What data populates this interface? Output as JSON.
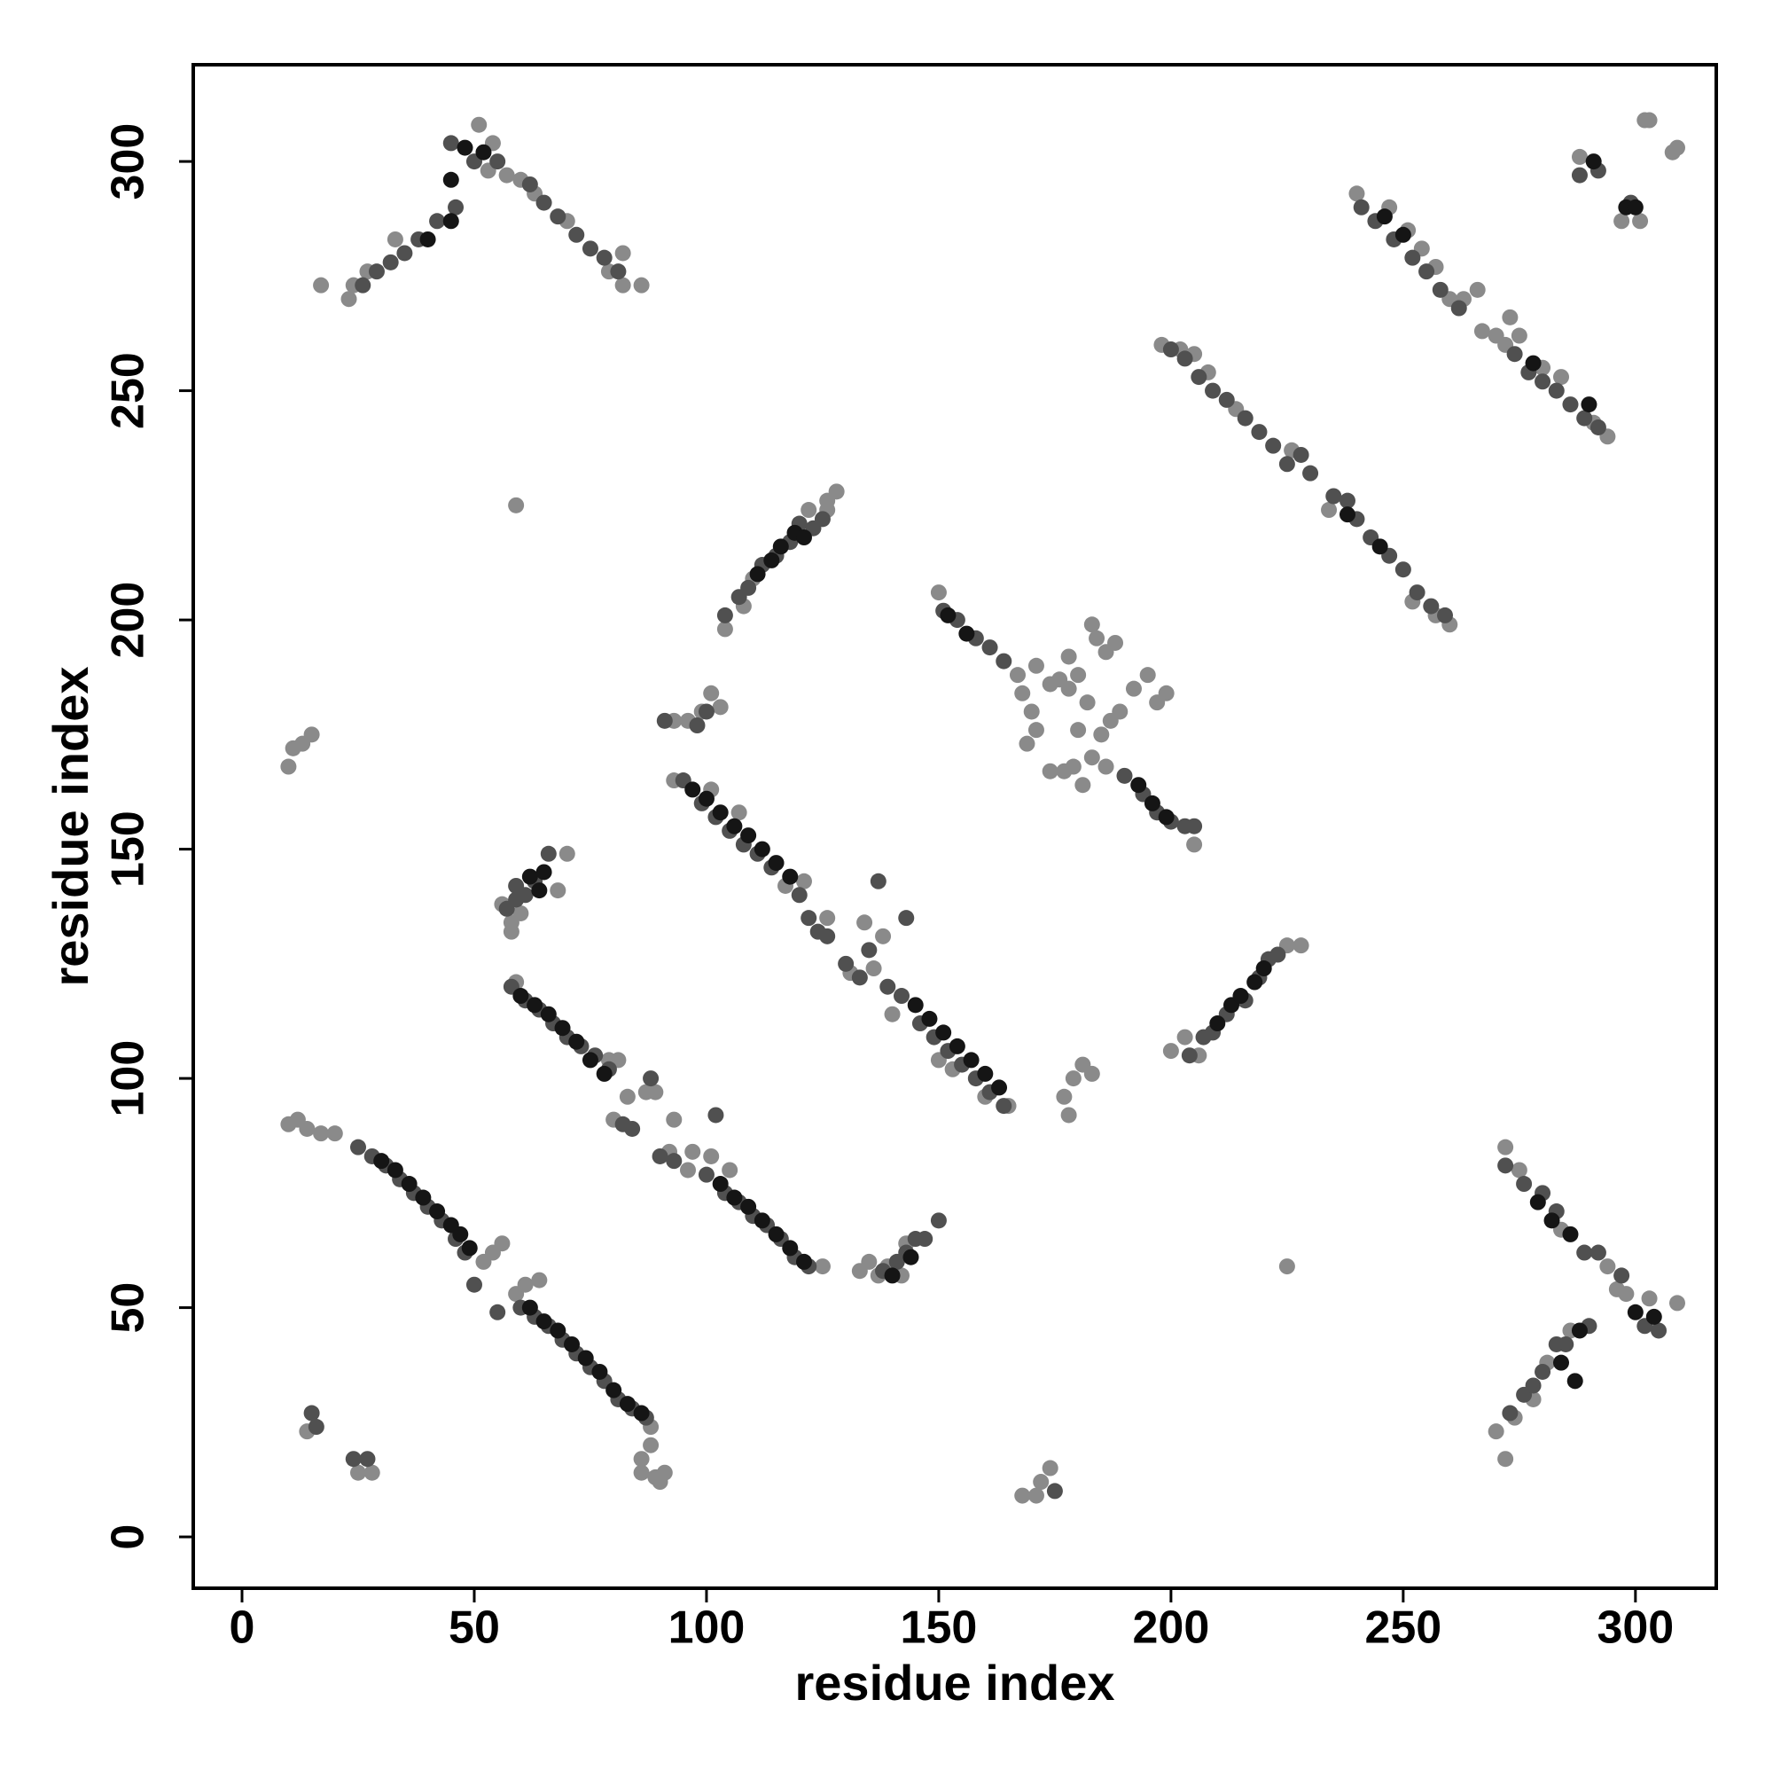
{
  "chart_data": {
    "type": "scatter",
    "xlabel": "residue index",
    "ylabel": "residue index",
    "xlim": [
      -10.5,
      317.4
    ],
    "ylim": [
      -11.2,
      321.1
    ],
    "xticks": [
      0,
      50,
      100,
      150,
      200,
      250,
      300
    ],
    "yticks": [
      0,
      50,
      100,
      150,
      200,
      250,
      300
    ],
    "series": [
      {
        "color": "#8a8a8a",
        "x": [
          10,
          12,
          14,
          17,
          20,
          52,
          54,
          56,
          59,
          61,
          64,
          88,
          88,
          86,
          89,
          90,
          91,
          86,
          59,
          79,
          81,
          83,
          87,
          80,
          92,
          96,
          97,
          101,
          105,
          125,
          93,
          89,
          133,
          135,
          137,
          139,
          142,
          143,
          93,
          101,
          107,
          117,
          121,
          126,
          134,
          136,
          140,
          150,
          153,
          160,
          165,
          131,
          138,
          56,
          58,
          60,
          68,
          70,
          58,
          104,
          108,
          110,
          122,
          126,
          128,
          126,
          150,
          167,
          168,
          170,
          171,
          169,
          177,
          174,
          179,
          181,
          183,
          185,
          187,
          189,
          176,
          178,
          180,
          182,
          184,
          186,
          188,
          183,
          192,
          195,
          197,
          199,
          180,
          186,
          205,
          171,
          174,
          178,
          200,
          203,
          225,
          228,
          206,
          198,
          205,
          208,
          214,
          226,
          234,
          257,
          260,
          202,
          252,
          240,
          247,
          251,
          254,
          257,
          260,
          263,
          266,
          267,
          270,
          272,
          275,
          280,
          284,
          291,
          294,
          273,
          288,
          297,
          301,
          302,
          303,
          308,
          309,
          272,
          275,
          284,
          294,
          296,
          298,
          303,
          309,
          270,
          272,
          274,
          278,
          281,
          286,
          17,
          23,
          24,
          27,
          33,
          51,
          53,
          57,
          60,
          63,
          70,
          79,
          82,
          86,
          82,
          54,
          10,
          11,
          13,
          15,
          14,
          25,
          28,
          168,
          171,
          172,
          174,
          59,
          225,
          93,
          96,
          99,
          101,
          103,
          178,
          177,
          179,
          181,
          183
        ],
        "y": [
          90,
          91,
          89,
          88,
          88,
          60,
          62,
          64,
          53,
          55,
          56,
          24,
          20,
          17,
          13,
          12,
          14,
          14,
          121,
          104,
          104,
          96,
          97,
          91,
          84,
          80,
          84,
          83,
          80,
          59,
          91,
          97,
          58,
          60,
          57,
          59,
          57,
          64,
          165,
          163,
          158,
          142,
          143,
          135,
          134,
          124,
          114,
          104,
          102,
          96,
          94,
          123,
          131,
          138,
          134,
          136,
          141,
          149,
          132,
          198,
          203,
          209,
          224,
          226,
          228,
          224,
          206,
          188,
          184,
          180,
          176,
          173,
          167,
          167,
          168,
          164,
          170,
          175,
          178,
          180,
          187,
          185,
          188,
          182,
          196,
          193,
          195,
          199,
          185,
          188,
          182,
          184,
          176,
          168,
          151,
          190,
          186,
          192,
          106,
          109,
          129,
          129,
          105,
          260,
          258,
          254,
          246,
          237,
          224,
          201,
          199,
          259,
          204,
          293,
          290,
          285,
          281,
          277,
          270,
          270,
          272,
          263,
          262,
          260,
          262,
          255,
          253,
          243,
          240,
          266,
          301,
          287,
          287,
          309,
          309,
          302,
          303,
          85,
          80,
          67,
          59,
          54,
          53,
          52,
          51,
          23,
          17,
          26,
          30,
          38,
          45,
          273,
          270,
          273,
          276,
          283,
          308,
          298,
          297,
          296,
          293,
          287,
          276,
          273,
          273,
          280,
          304,
          168,
          172,
          173,
          175,
          23,
          14,
          14,
          9,
          9,
          12,
          15,
          225,
          59,
          178,
          178,
          180,
          184,
          181,
          92,
          96,
          100,
          103,
          101
        ]
      },
      {
        "color": "#505050",
        "x": [
          25,
          28,
          31,
          34,
          37,
          40,
          43,
          46,
          48,
          50,
          55,
          60,
          63,
          66,
          69,
          72,
          75,
          78,
          81,
          84,
          87,
          58,
          61,
          64,
          67,
          70,
          73,
          76,
          79,
          82,
          84,
          90,
          93,
          100,
          104,
          107,
          110,
          113,
          116,
          119,
          122,
          88,
          102,
          138,
          141,
          143,
          145,
          147,
          150,
          95,
          99,
          102,
          105,
          108,
          111,
          114,
          120,
          122,
          124,
          130,
          133,
          135,
          139,
          142,
          146,
          149,
          152,
          155,
          158,
          161,
          164,
          126,
          137,
          143,
          57,
          59,
          61,
          63,
          66,
          59,
          104,
          107,
          109,
          112,
          115,
          118,
          120,
          123,
          125,
          151,
          154,
          158,
          161,
          164,
          190,
          194,
          197,
          200,
          203,
          205,
          204,
          207,
          209,
          212,
          216,
          219,
          221,
          223,
          200,
          203,
          206,
          209,
          212,
          216,
          219,
          222,
          225,
          230,
          235,
          240,
          243,
          247,
          250,
          253,
          256,
          259,
          228,
          238,
          241,
          244,
          248,
          252,
          255,
          258,
          262,
          274,
          277,
          280,
          283,
          286,
          289,
          292,
          288,
          292,
          299,
          272,
          276,
          280,
          283,
          289,
          292,
          297,
          302,
          305,
          273,
          276,
          278,
          280,
          283,
          285,
          290,
          26,
          29,
          32,
          35,
          38,
          42,
          46,
          45,
          50,
          55,
          62,
          65,
          68,
          72,
          75,
          78,
          81,
          15,
          16,
          24,
          27,
          91,
          98,
          100,
          175
        ],
        "y": [
          85,
          83,
          81,
          78,
          75,
          72,
          69,
          65,
          62,
          55,
          49,
          50,
          48,
          46,
          43,
          40,
          37,
          34,
          30,
          28,
          26,
          120,
          117,
          115,
          112,
          109,
          107,
          105,
          102,
          90,
          89,
          83,
          82,
          79,
          75,
          73,
          70,
          68,
          65,
          61,
          59,
          100,
          92,
          58,
          60,
          62,
          65,
          65,
          69,
          165,
          160,
          157,
          154,
          151,
          149,
          146,
          140,
          135,
          132,
          125,
          122,
          128,
          120,
          118,
          112,
          109,
          106,
          103,
          100,
          97,
          94,
          131,
          143,
          135,
          137,
          139,
          140,
          143,
          149,
          142,
          201,
          205,
          207,
          212,
          214,
          217,
          221,
          220,
          222,
          202,
          200,
          196,
          194,
          191,
          166,
          162,
          158,
          156,
          155,
          155,
          105,
          109,
          110,
          114,
          117,
          122,
          126,
          127,
          259,
          257,
          253,
          250,
          248,
          244,
          241,
          238,
          234,
          232,
          227,
          222,
          218,
          214,
          211,
          206,
          203,
          201,
          236,
          226,
          290,
          287,
          283,
          279,
          276,
          272,
          268,
          258,
          254,
          252,
          250,
          247,
          244,
          242,
          297,
          298,
          291,
          81,
          77,
          75,
          71,
          62,
          62,
          57,
          46,
          45,
          27,
          31,
          33,
          36,
          42,
          42,
          46,
          273,
          276,
          278,
          280,
          283,
          287,
          290,
          304,
          300,
          300,
          295,
          291,
          288,
          284,
          281,
          279,
          276,
          27,
          24,
          17,
          17,
          178,
          177,
          180,
          10
        ]
      },
      {
        "color": "#151515",
        "x": [
          30,
          33,
          36,
          39,
          42,
          45,
          47,
          49,
          62,
          65,
          68,
          71,
          74,
          77,
          80,
          83,
          86,
          60,
          63,
          66,
          69,
          72,
          75,
          78,
          103,
          106,
          109,
          112,
          115,
          118,
          121,
          140,
          144,
          97,
          100,
          103,
          106,
          109,
          112,
          115,
          118,
          145,
          148,
          151,
          154,
          157,
          160,
          163,
          62,
          64,
          65,
          111,
          114,
          116,
          119,
          121,
          152,
          156,
          193,
          196,
          199,
          210,
          213,
          215,
          218,
          220,
          245,
          238,
          246,
          250,
          278,
          290,
          291,
          298,
          300,
          279,
          282,
          286,
          300,
          304,
          284,
          288,
          287,
          40,
          45,
          48,
          52,
          45
        ],
        "y": [
          82,
          80,
          77,
          74,
          71,
          68,
          66,
          63,
          50,
          47,
          45,
          42,
          39,
          36,
          32,
          29,
          27,
          118,
          116,
          114,
          111,
          108,
          104,
          101,
          77,
          74,
          72,
          69,
          66,
          63,
          60,
          57,
          61,
          163,
          161,
          158,
          155,
          153,
          150,
          147,
          144,
          116,
          113,
          110,
          107,
          104,
          101,
          98,
          144,
          141,
          145,
          210,
          213,
          216,
          219,
          218,
          201,
          197,
          164,
          160,
          157,
          112,
          116,
          118,
          121,
          124,
          216,
          223,
          288,
          284,
          256,
          247,
          300,
          290,
          290,
          73,
          69,
          66,
          49,
          48,
          38,
          45,
          34,
          283,
          287,
          303,
          302,
          296
        ]
      }
    ]
  }
}
